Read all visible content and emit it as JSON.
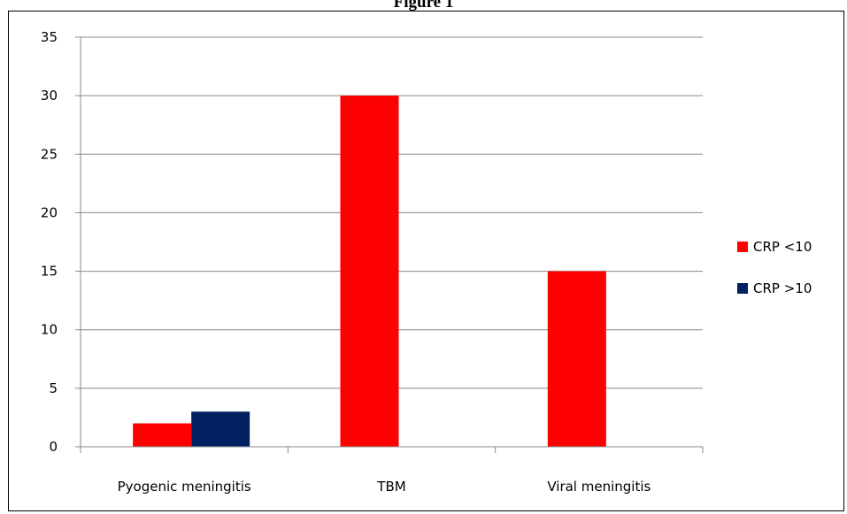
{
  "figure_title": "Figure 1",
  "chart_data": {
    "type": "bar",
    "title": "",
    "xlabel": "",
    "ylabel": "",
    "categories": [
      "Pyogenic meningitis",
      "TBM",
      "Viral meningitis"
    ],
    "series": [
      {
        "name": "CRP <10",
        "color": "#ff0000",
        "values": [
          2,
          30,
          15
        ]
      },
      {
        "name": "CRP >10",
        "color": "#002060",
        "values": [
          3,
          0,
          0
        ]
      }
    ],
    "ylim": [
      0,
      35
    ],
    "yticks": [
      0,
      5,
      10,
      15,
      20,
      25,
      30,
      35
    ],
    "grid": true,
    "legend": "right"
  }
}
